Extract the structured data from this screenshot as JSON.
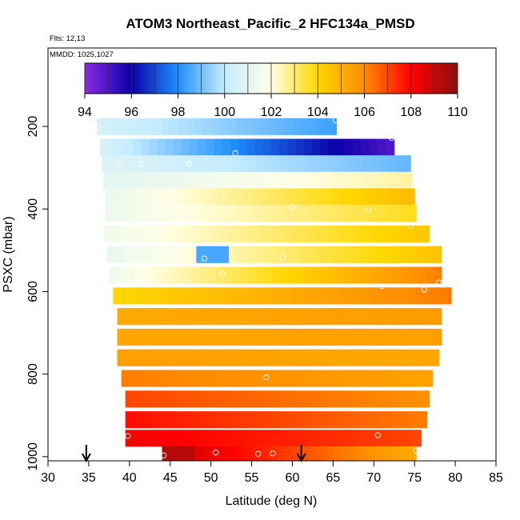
{
  "title": "ATOM3 Northeast_Pacific_2 HFC134a_PMSD",
  "flights_label": "Flts: 12,13",
  "dates_label": "MMDD: 1025,1027",
  "chart_data": {
    "type": "heatmap",
    "title": "ATOM3 Northeast_Pacific_2 HFC134a_PMSD",
    "xlabel": "Latitude (deg N)",
    "ylabel": "PSXC (mbar)",
    "xlim": [
      30,
      85
    ],
    "ylim": [
      1010,
      10
    ],
    "x_ticks": [
      "30",
      "35",
      "40",
      "45",
      "50",
      "55",
      "60",
      "65",
      "70",
      "75",
      "80",
      "85"
    ],
    "y_ticks": [
      "200",
      "400",
      "600",
      "800",
      "1000"
    ],
    "colorbar": {
      "min": 94,
      "max": 110,
      "ticks": [
        "94",
        "96",
        "98",
        "100",
        "102",
        "104",
        "106",
        "108",
        "110"
      ],
      "colors": [
        "#8a2be2",
        "#0a00a8",
        "#1e90ff",
        "#c6ecff",
        "#ffffe6",
        "#ffd700",
        "#ff8c00",
        "#ff0000",
        "#8b1010"
      ]
    },
    "bands": [
      {
        "p": 200,
        "x0": 36,
        "x1": 65.4,
        "v0": 100.5,
        "v1": 98.3
      },
      {
        "p": 250,
        "x0": 36.4,
        "x1": 72.5,
        "v0": 100.5,
        "v1": 94.8
      },
      {
        "p": 290,
        "x0": 36.6,
        "x1": 74.5,
        "v0": 100.8,
        "v1": 98.8
      },
      {
        "p": 330,
        "x0": 36.8,
        "x1": 74.7,
        "v0": 101.0,
        "v1": 102.6
      },
      {
        "p": 370,
        "x0": 37.0,
        "x1": 75.0,
        "v0": 101.3,
        "v1": 104.8
      },
      {
        "p": 410,
        "x0": 37.0,
        "x1": 75.2,
        "v0": 101.4,
        "v1": 103.8
      },
      {
        "p": 460,
        "x0": 36.9,
        "x1": 76.8,
        "v0": 101.5,
        "v1": 104.5
      },
      {
        "p": 510,
        "x0": 37.2,
        "x1": 78.3,
        "v0": 101.3,
        "v1": 104.6
      },
      {
        "p": 560,
        "x0": 37.5,
        "x1": 78.3,
        "v0": 101.5,
        "v1": 106.3
      },
      {
        "p": 610,
        "x0": 38.0,
        "x1": 79.5,
        "v0": 104.0,
        "v1": 106.3
      },
      {
        "p": 660,
        "x0": 38.5,
        "x1": 78.3,
        "v0": 105.2,
        "v1": 105.6
      },
      {
        "p": 710,
        "x0": 38.5,
        "x1": 78.3,
        "v0": 105.3,
        "v1": 105.5
      },
      {
        "p": 760,
        "x0": 38.5,
        "x1": 78.0,
        "v0": 105.5,
        "v1": 105.3
      },
      {
        "p": 810,
        "x0": 39.0,
        "x1": 77.2,
        "v0": 106.2,
        "v1": 105.4
      },
      {
        "p": 860,
        "x0": 39.5,
        "x1": 76.8,
        "v0": 107.0,
        "v1": 105.9
      },
      {
        "p": 910,
        "x0": 39.5,
        "x1": 76.5,
        "v0": 107.8,
        "v1": 106.2
      },
      {
        "p": 955,
        "x0": 39.5,
        "x1": 75.8,
        "v0": 108.2,
        "v1": 107.0
      },
      {
        "p": 995,
        "x0": 44.0,
        "x1": 75.2,
        "v0": 109.0,
        "v1": 105.1
      }
    ],
    "points": [
      {
        "x": 36.2,
        "p": 200
      },
      {
        "x": 65.3,
        "p": 185
      },
      {
        "x": 72.2,
        "p": 228
      },
      {
        "x": 53.0,
        "p": 265
      },
      {
        "x": 38.8,
        "p": 290
      },
      {
        "x": 41.5,
        "p": 290
      },
      {
        "x": 47.3,
        "p": 290
      },
      {
        "x": 60.0,
        "p": 395
      },
      {
        "x": 69.3,
        "p": 403
      },
      {
        "x": 74.5,
        "p": 440
      },
      {
        "x": 37.4,
        "p": 453
      },
      {
        "x": 39.2,
        "p": 472
      },
      {
        "x": 40.3,
        "p": 487
      },
      {
        "x": 43.2,
        "p": 500
      },
      {
        "x": 45.2,
        "p": 515
      },
      {
        "x": 49.2,
        "p": 520
      },
      {
        "x": 58.8,
        "p": 518
      },
      {
        "x": 51.4,
        "p": 557
      },
      {
        "x": 78.0,
        "p": 578
      },
      {
        "x": 71.0,
        "p": 587
      },
      {
        "x": 76.2,
        "p": 595
      },
      {
        "x": 56.8,
        "p": 808
      },
      {
        "x": 39.8,
        "p": 950
      },
      {
        "x": 70.5,
        "p": 948
      },
      {
        "x": 75.2,
        "p": 985
      },
      {
        "x": 44.2,
        "p": 997
      },
      {
        "x": 50.6,
        "p": 990
      },
      {
        "x": 55.8,
        "p": 993
      },
      {
        "x": 57.6,
        "p": 992
      }
    ],
    "arrows": [
      {
        "x": 34.7
      },
      {
        "x": 61.1
      }
    ]
  }
}
